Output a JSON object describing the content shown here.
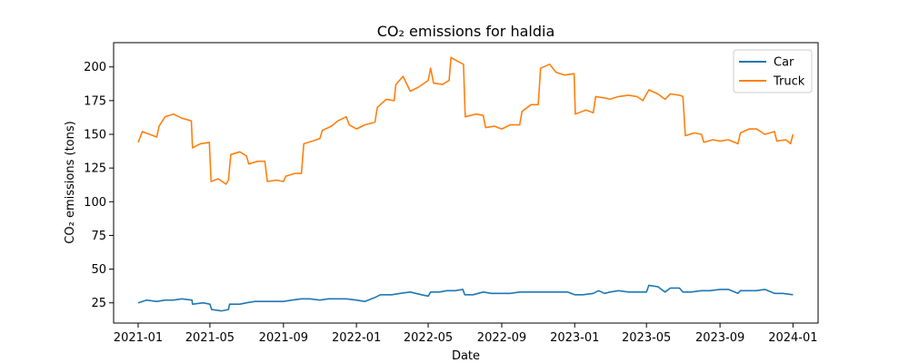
{
  "chart_data": {
    "type": "line",
    "title": "CO₂ emissions for haldia",
    "xlabel": "Date",
    "ylabel": "CO₂ emissions (tons)",
    "xlim": [
      "2020-11-21",
      "2024-02-12"
    ],
    "ylim": [
      10,
      218
    ],
    "x_ticks": [
      "2021-01",
      "2021-05",
      "2021-09",
      "2022-01",
      "2022-05",
      "2022-09",
      "2023-01",
      "2023-05",
      "2023-09",
      "2024-01"
    ],
    "y_ticks": [
      25,
      50,
      75,
      100,
      125,
      150,
      175,
      200
    ],
    "grid": false,
    "legend": "top-right",
    "series": [
      {
        "name": "Car",
        "color": "#1f77b4",
        "points": [
          [
            "2021-01-01",
            25
          ],
          [
            "2021-01-15",
            27
          ],
          [
            "2021-02-01",
            26
          ],
          [
            "2021-02-15",
            27
          ],
          [
            "2021-03-01",
            27
          ],
          [
            "2021-03-15",
            28
          ],
          [
            "2021-04-01",
            27
          ],
          [
            "2021-04-02",
            24
          ],
          [
            "2021-04-20",
            25
          ],
          [
            "2021-05-01",
            24
          ],
          [
            "2021-05-04",
            20
          ],
          [
            "2021-05-20",
            19
          ],
          [
            "2021-06-01",
            20
          ],
          [
            "2021-06-03",
            24
          ],
          [
            "2021-06-20",
            24
          ],
          [
            "2021-07-01",
            25
          ],
          [
            "2021-07-15",
            26
          ],
          [
            "2021-08-01",
            26
          ],
          [
            "2021-08-15",
            26
          ],
          [
            "2021-09-01",
            26
          ],
          [
            "2021-09-15",
            27
          ],
          [
            "2021-10-01",
            28
          ],
          [
            "2021-10-15",
            28
          ],
          [
            "2021-11-01",
            27
          ],
          [
            "2021-11-15",
            28
          ],
          [
            "2021-12-01",
            28
          ],
          [
            "2021-12-15",
            28
          ],
          [
            "2022-01-01",
            27
          ],
          [
            "2022-01-15",
            26
          ],
          [
            "2022-02-01",
            29
          ],
          [
            "2022-02-10",
            31
          ],
          [
            "2022-03-01",
            31
          ],
          [
            "2022-03-15",
            32
          ],
          [
            "2022-04-01",
            33
          ],
          [
            "2022-04-20",
            31
          ],
          [
            "2022-05-01",
            30
          ],
          [
            "2022-05-05",
            33
          ],
          [
            "2022-05-20",
            33
          ],
          [
            "2022-06-01",
            34
          ],
          [
            "2022-06-15",
            34
          ],
          [
            "2022-06-28",
            35
          ],
          [
            "2022-07-01",
            31
          ],
          [
            "2022-07-15",
            31
          ],
          [
            "2022-08-01",
            33
          ],
          [
            "2022-08-15",
            32
          ],
          [
            "2022-09-01",
            32
          ],
          [
            "2022-09-15",
            32
          ],
          [
            "2022-10-01",
            33
          ],
          [
            "2022-10-15",
            33
          ],
          [
            "2022-11-01",
            33
          ],
          [
            "2022-11-15",
            33
          ],
          [
            "2022-12-01",
            33
          ],
          [
            "2022-12-20",
            33
          ],
          [
            "2023-01-01",
            31
          ],
          [
            "2023-01-15",
            31
          ],
          [
            "2023-02-01",
            32
          ],
          [
            "2023-02-10",
            34
          ],
          [
            "2023-02-20",
            32
          ],
          [
            "2023-03-01",
            33
          ],
          [
            "2023-03-15",
            34
          ],
          [
            "2023-04-01",
            33
          ],
          [
            "2023-04-15",
            33
          ],
          [
            "2023-05-01",
            33
          ],
          [
            "2023-05-05",
            38
          ],
          [
            "2023-05-20",
            37
          ],
          [
            "2023-06-01",
            33
          ],
          [
            "2023-06-10",
            36
          ],
          [
            "2023-06-25",
            36
          ],
          [
            "2023-07-01",
            33
          ],
          [
            "2023-07-15",
            33
          ],
          [
            "2023-08-01",
            34
          ],
          [
            "2023-08-15",
            34
          ],
          [
            "2023-09-01",
            35
          ],
          [
            "2023-09-15",
            35
          ],
          [
            "2023-10-01",
            32
          ],
          [
            "2023-10-05",
            34
          ],
          [
            "2023-10-20",
            34
          ],
          [
            "2023-11-01",
            34
          ],
          [
            "2023-11-15",
            35
          ],
          [
            "2023-12-01",
            32
          ],
          [
            "2023-12-15",
            32
          ],
          [
            "2024-01-01",
            31
          ]
        ]
      },
      {
        "name": "Truck",
        "color": "#ff7f0e",
        "points": [
          [
            "2021-01-01",
            144
          ],
          [
            "2021-01-08",
            152
          ],
          [
            "2021-01-20",
            150
          ],
          [
            "2021-02-01",
            148
          ],
          [
            "2021-02-05",
            156
          ],
          [
            "2021-02-15",
            163
          ],
          [
            "2021-03-01",
            165
          ],
          [
            "2021-03-15",
            162
          ],
          [
            "2021-03-31",
            160
          ],
          [
            "2021-04-02",
            140
          ],
          [
            "2021-04-15",
            143
          ],
          [
            "2021-04-30",
            144
          ],
          [
            "2021-05-03",
            115
          ],
          [
            "2021-05-15",
            117
          ],
          [
            "2021-05-28",
            113
          ],
          [
            "2021-06-01",
            116
          ],
          [
            "2021-06-05",
            135
          ],
          [
            "2021-06-20",
            137
          ],
          [
            "2021-07-01",
            134
          ],
          [
            "2021-07-05",
            128
          ],
          [
            "2021-07-20",
            130
          ],
          [
            "2021-08-01",
            130
          ],
          [
            "2021-08-05",
            115
          ],
          [
            "2021-08-20",
            116
          ],
          [
            "2021-09-01",
            115
          ],
          [
            "2021-09-05",
            119
          ],
          [
            "2021-09-20",
            121
          ],
          [
            "2021-10-01",
            121
          ],
          [
            "2021-10-05",
            143
          ],
          [
            "2021-10-20",
            145
          ],
          [
            "2021-11-01",
            147
          ],
          [
            "2021-11-05",
            153
          ],
          [
            "2021-11-20",
            156
          ],
          [
            "2021-12-01",
            160
          ],
          [
            "2021-12-15",
            163
          ],
          [
            "2021-12-20",
            157
          ],
          [
            "2022-01-01",
            154
          ],
          [
            "2022-01-15",
            157
          ],
          [
            "2022-02-01",
            159
          ],
          [
            "2022-02-05",
            170
          ],
          [
            "2022-02-20",
            176
          ],
          [
            "2022-03-05",
            175
          ],
          [
            "2022-03-08",
            187
          ],
          [
            "2022-03-20",
            193
          ],
          [
            "2022-04-01",
            182
          ],
          [
            "2022-04-15",
            185
          ],
          [
            "2022-05-01",
            190
          ],
          [
            "2022-05-05",
            199
          ],
          [
            "2022-05-10",
            188
          ],
          [
            "2022-05-25",
            187
          ],
          [
            "2022-06-05",
            190
          ],
          [
            "2022-06-08",
            207
          ],
          [
            "2022-06-20",
            204
          ],
          [
            "2022-06-29",
            202
          ],
          [
            "2022-07-02",
            163
          ],
          [
            "2022-07-20",
            165
          ],
          [
            "2022-08-01",
            164
          ],
          [
            "2022-08-05",
            155
          ],
          [
            "2022-08-20",
            156
          ],
          [
            "2022-09-01",
            154
          ],
          [
            "2022-09-15",
            157
          ],
          [
            "2022-10-01",
            157
          ],
          [
            "2022-10-05",
            167
          ],
          [
            "2022-10-20",
            172
          ],
          [
            "2022-11-01",
            172
          ],
          [
            "2022-11-05",
            199
          ],
          [
            "2022-11-20",
            202
          ],
          [
            "2022-12-01",
            196
          ],
          [
            "2022-12-15",
            194
          ],
          [
            "2022-12-31",
            195
          ],
          [
            "2023-01-02",
            165
          ],
          [
            "2023-01-20",
            168
          ],
          [
            "2023-02-01",
            166
          ],
          [
            "2023-02-05",
            178
          ],
          [
            "2023-02-20",
            177
          ],
          [
            "2023-03-01",
            176
          ],
          [
            "2023-03-15",
            178
          ],
          [
            "2023-04-01",
            179
          ],
          [
            "2023-04-15",
            178
          ],
          [
            "2023-04-25",
            175
          ],
          [
            "2023-05-05",
            183
          ],
          [
            "2023-05-20",
            180
          ],
          [
            "2023-06-01",
            176
          ],
          [
            "2023-06-10",
            180
          ],
          [
            "2023-06-25",
            179
          ],
          [
            "2023-07-01",
            178
          ],
          [
            "2023-07-05",
            149
          ],
          [
            "2023-07-20",
            151
          ],
          [
            "2023-08-01",
            150
          ],
          [
            "2023-08-05",
            144
          ],
          [
            "2023-08-20",
            146
          ],
          [
            "2023-09-01",
            145
          ],
          [
            "2023-09-15",
            146
          ],
          [
            "2023-10-01",
            143
          ],
          [
            "2023-10-05",
            151
          ],
          [
            "2023-10-20",
            154
          ],
          [
            "2023-11-01",
            154
          ],
          [
            "2023-11-15",
            150
          ],
          [
            "2023-12-01",
            152
          ],
          [
            "2023-12-05",
            145
          ],
          [
            "2023-12-20",
            146
          ],
          [
            "2023-12-28",
            143
          ],
          [
            "2024-01-01",
            150
          ]
        ]
      }
    ]
  }
}
